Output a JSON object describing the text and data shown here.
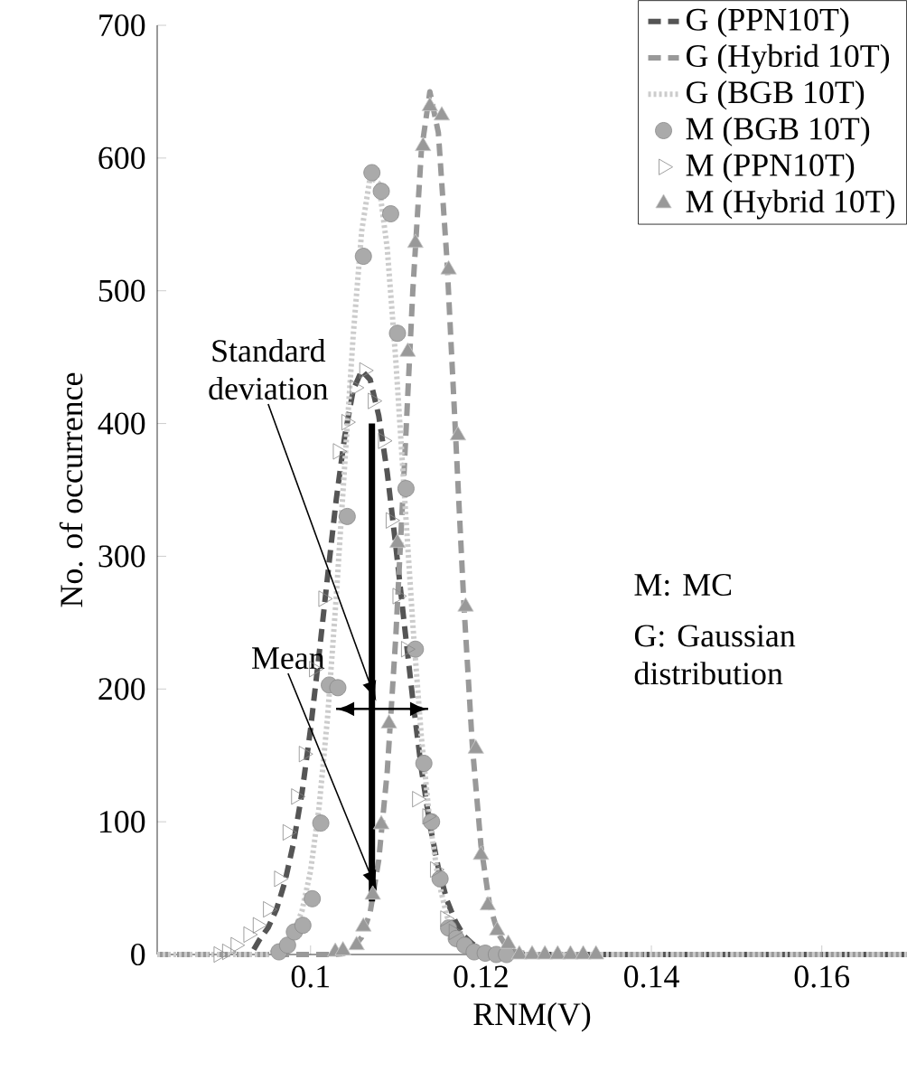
{
  "chart_data": {
    "type": "line",
    "xlabel": "RNM(V)",
    "ylabel": "No. of occurrence",
    "xlim": [
      0.082,
      0.17
    ],
    "ylim": [
      0,
      700
    ],
    "xticks": [
      0.1,
      0.12,
      0.14,
      0.16
    ],
    "yticks": [
      0,
      100,
      200,
      300,
      400,
      500,
      600,
      700
    ],
    "legend": "top right",
    "annotations": [
      {
        "text": "Standard deviation",
        "x": 0.1069,
        "y": 205
      },
      {
        "text": "Mean",
        "x": 0.1069,
        "y": 62
      },
      "M: MC",
      "G: Gaussian distribution"
    ],
    "series": [
      {
        "name": "G (PPN10T)",
        "line_style": "dashed",
        "color": "#555555",
        "x": [
          0.082,
          0.093,
          0.094,
          0.095,
          0.096,
          0.097,
          0.098,
          0.099,
          0.1,
          0.101,
          0.102,
          0.103,
          0.104,
          0.105,
          0.106,
          0.107,
          0.108,
          0.109,
          0.11,
          0.111,
          0.112,
          0.113,
          0.114,
          0.115,
          0.116,
          0.117,
          0.118,
          0.119,
          0.12,
          0.121,
          0.122,
          0.123,
          0.17
        ],
        "values": [
          0,
          0,
          11,
          20,
          34,
          55,
          84,
          122,
          170,
          226,
          285,
          342,
          390,
          425,
          440,
          433,
          406,
          363,
          308,
          249,
          192,
          140,
          98,
          65,
          41,
          25,
          14,
          8,
          4,
          2,
          1,
          0,
          0
        ]
      },
      {
        "name": "G (Hybrid 10T)",
        "line_style": "dashed",
        "color": "#999999",
        "x": [
          0.082,
          0.103,
          0.104,
          0.105,
          0.106,
          0.107,
          0.108,
          0.109,
          0.11,
          0.111,
          0.112,
          0.113,
          0.114,
          0.115,
          0.116,
          0.117,
          0.118,
          0.119,
          0.12,
          0.121,
          0.122,
          0.123,
          0.124,
          0.125,
          0.126,
          0.17
        ],
        "values": [
          0,
          0,
          1,
          5,
          13,
          32,
          71,
          138,
          239,
          367,
          500,
          605,
          650,
          619,
          524,
          394,
          263,
          156,
          82,
          38,
          16,
          6,
          2,
          1,
          0,
          0
        ]
      },
      {
        "name": "G (BGB 10T)",
        "line_style": "dotted",
        "color": "#cccccc",
        "x": [
          0.082,
          0.095,
          0.096,
          0.097,
          0.098,
          0.099,
          0.1,
          0.101,
          0.102,
          0.103,
          0.104,
          0.105,
          0.106,
          0.107,
          0.108,
          0.109,
          0.11,
          0.111,
          0.112,
          0.113,
          0.114,
          0.115,
          0.116,
          0.117,
          0.118,
          0.119,
          0.12,
          0.121,
          0.17
        ],
        "values": [
          0,
          0,
          3,
          7,
          16,
          33,
          63,
          111,
          179,
          268,
          368,
          466,
          545,
          586,
          581,
          532,
          448,
          348,
          249,
          164,
          100,
          56,
          29,
          14,
          6,
          3,
          1,
          0,
          0
        ]
      },
      {
        "name": "M (BGB 10T)",
        "type": "scatter",
        "marker": "circle",
        "color": "#aaaaaa",
        "x": [
          0.0963,
          0.0973,
          0.0981,
          0.0991,
          0.1002,
          0.1012,
          0.1022,
          0.1032,
          0.1043,
          0.1062,
          0.1072,
          0.1083,
          0.1094,
          0.1102,
          0.1112,
          0.1123,
          0.1133,
          0.1142,
          0.1152,
          0.1162,
          0.1171,
          0.1181,
          0.1192,
          0.1205,
          0.1218,
          0.123
        ],
        "values": [
          2,
          7,
          17,
          22,
          42,
          99,
          203,
          201,
          330,
          526,
          589,
          575,
          558,
          468,
          351,
          230,
          144,
          100,
          57,
          20,
          12,
          7,
          2,
          1,
          0,
          0
        ]
      },
      {
        "name": "M (PPN10T)",
        "type": "scatter",
        "marker": "triangle-right",
        "color": "#888888",
        "x": [
          0.0892,
          0.0902,
          0.0912,
          0.0927,
          0.0938,
          0.095,
          0.0963,
          0.0973,
          0.0983,
          0.0992,
          0.1004,
          0.1015,
          0.1032,
          0.1042,
          0.1052,
          0.1063,
          0.1073,
          0.1085,
          0.1094,
          0.1102,
          0.1112,
          0.1125,
          0.1137,
          0.1146,
          0.1158,
          0.1168
        ],
        "values": [
          0,
          2,
          7,
          15,
          22,
          34,
          57,
          92,
          119,
          151,
          215,
          268,
          379,
          401,
          427,
          440,
          417,
          387,
          327,
          270,
          230,
          117,
          104,
          64,
          27,
          17
        ]
      },
      {
        "name": "M (Hybrid 10T)",
        "type": "scatter",
        "marker": "triangle",
        "color": "#999999",
        "x": [
          0.1029,
          0.1038,
          0.1054,
          0.1062,
          0.1073,
          0.1083,
          0.1092,
          0.1102,
          0.1114,
          0.1123,
          0.1132,
          0.114,
          0.1154,
          0.1162,
          0.1173,
          0.1182,
          0.1194,
          0.12,
          0.1208,
          0.1219,
          0.1232,
          0.1245,
          0.126,
          0.1275,
          0.129,
          0.1305,
          0.132,
          0.1335
        ],
        "values": [
          2,
          3,
          7,
          21,
          45,
          98,
          174,
          310,
          454,
          536,
          609,
          639,
          632,
          516,
          391,
          262,
          155,
          75,
          37,
          18,
          8,
          0,
          0,
          0,
          0,
          0,
          0,
          0
        ]
      },
      {
        "type": "line",
        "line_style": "solid",
        "color": "#000000",
        "x": [
          0.1072,
          0.1072
        ],
        "values": [
          40,
          400
        ]
      },
      {
        "type": "line",
        "line_style": "solid",
        "color": "#000000",
        "x": [
          0.103,
          0.1138
        ],
        "values": [
          185,
          185
        ]
      }
    ]
  }
}
